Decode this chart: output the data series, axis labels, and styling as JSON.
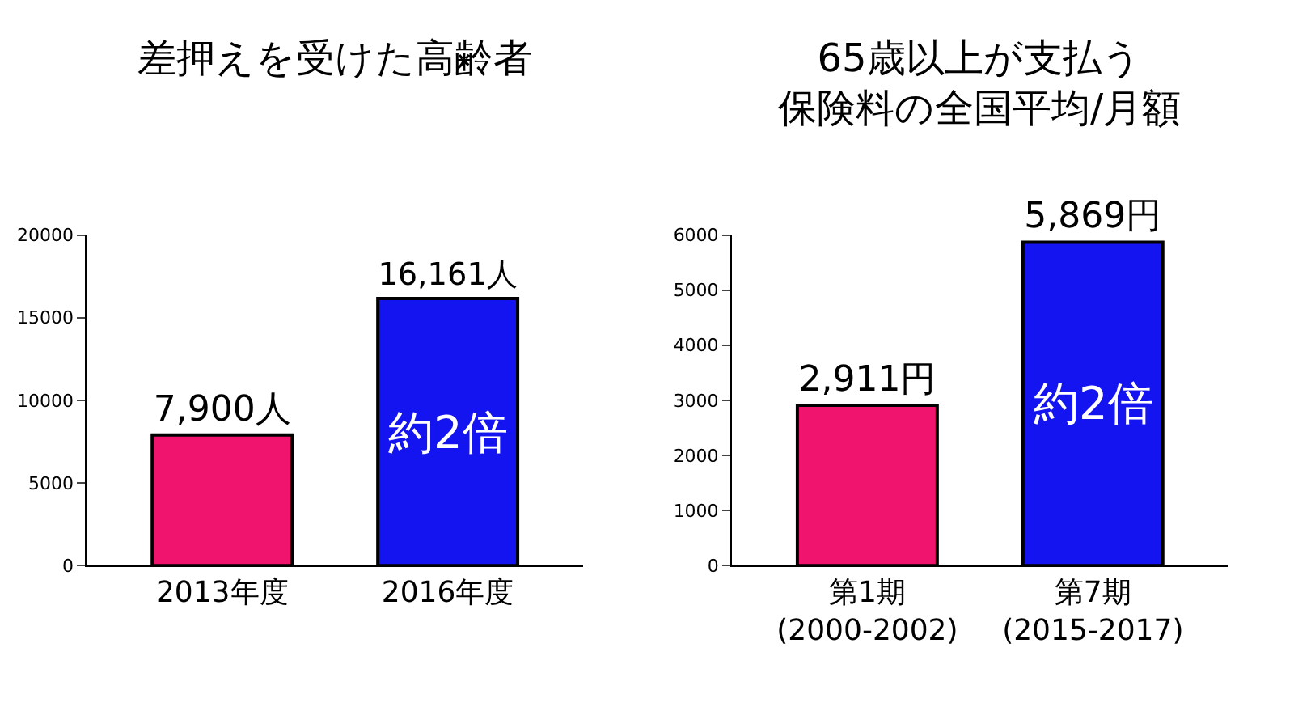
{
  "chart_data": [
    {
      "type": "bar",
      "title": "差押えを受けた高齢者",
      "categories": [
        "2013年度",
        "2016年度"
      ],
      "values": [
        7900,
        16161
      ],
      "colors": [
        "#f0146e",
        "#1414f0"
      ],
      "value_labels": [
        "7,900人",
        "16,161人"
      ],
      "ylim": [
        0,
        20000
      ],
      "yticks": [
        0,
        5000,
        10000,
        15000,
        20000
      ],
      "annotations": [
        "約2倍"
      ]
    },
    {
      "type": "bar",
      "title": "65歳以上が支払う",
      "subtitle": "保険料の全国平均/月額",
      "categories": [
        "第1期\n(2000-2002)",
        "第7期\n(2015-2017)"
      ],
      "values": [
        2911,
        5869
      ],
      "colors": [
        "#f0146e",
        "#1414f0"
      ],
      "value_labels": [
        "2,911円",
        "5,869円"
      ],
      "ylim": [
        0,
        6000
      ],
      "yticks": [
        0,
        1000,
        2000,
        3000,
        4000,
        5000,
        6000
      ],
      "annotations": [
        "約2倍"
      ]
    }
  ]
}
